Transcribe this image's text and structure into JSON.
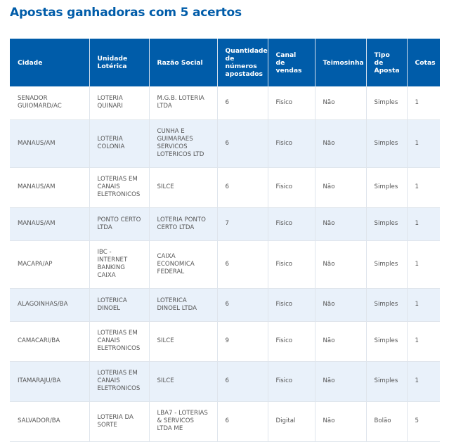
{
  "page_title": "Apostas ganhadoras com 5 acertos",
  "table": {
    "headers": [
      "Cidade",
      "Unidade Lotérica",
      "Razão Social",
      "Quantidade de números apostados",
      "Canal de vendas",
      "Teimosinha",
      "Tipo de Aposta",
      "Cotas"
    ],
    "rows": [
      [
        "SENADOR GUIOMARD/AC",
        "LOTERIA QUINARI",
        "M.G.B. LOTERIA LTDA",
        "6",
        "Fisico",
        "Não",
        "Simples",
        "1"
      ],
      [
        "MANAUS/AM",
        "LOTERIA COLONIA",
        "CUNHA E GUIMARAES SERVICOS LOTERICOS LTD",
        "6",
        "Fisico",
        "Não",
        "Simples",
        "1"
      ],
      [
        "MANAUS/AM",
        "LOTERIAS EM CANAIS ELETRONICOS",
        "SILCE",
        "6",
        "Fisico",
        "Não",
        "Simples",
        "1"
      ],
      [
        "MANAUS/AM",
        "PONTO CERTO LTDA",
        "LOTERIA PONTO CERTO LTDA",
        "7",
        "Fisico",
        "Não",
        "Simples",
        "1"
      ],
      [
        "MACAPA/AP",
        "IBC - INTERNET BANKING CAIXA",
        "CAIXA ECONOMICA FEDERAL",
        "6",
        "Fisico",
        "Não",
        "Simples",
        "1"
      ],
      [
        "ALAGOINHAS/BA",
        "LOTERICA DINOEL",
        "LOTERICA DINOEL LTDA",
        "6",
        "Fisico",
        "Não",
        "Simples",
        "1"
      ],
      [
        "CAMACARI/BA",
        "LOTERIAS EM CANAIS ELETRONICOS",
        "SILCE",
        "9",
        "Fisico",
        "Não",
        "Simples",
        "1"
      ],
      [
        "ITAMARAJU/BA",
        "LOTERIAS EM CANAIS ELETRONICOS",
        "SILCE",
        "6",
        "Fisico",
        "Não",
        "Simples",
        "1"
      ],
      [
        "SALVADOR/BA",
        "LOTERIA DA SORTE",
        "LBA7 - LOTERIAS & SERVICOS LTDA ME",
        "6",
        "Digital",
        "Não",
        "Bolão",
        "5"
      ]
    ]
  },
  "colors": {
    "title": "#005ca9",
    "header_bg": "#005ca9",
    "header_text": "#ffffff",
    "stripe_bg": "#e9f1fa",
    "cell_text": "#555555"
  }
}
